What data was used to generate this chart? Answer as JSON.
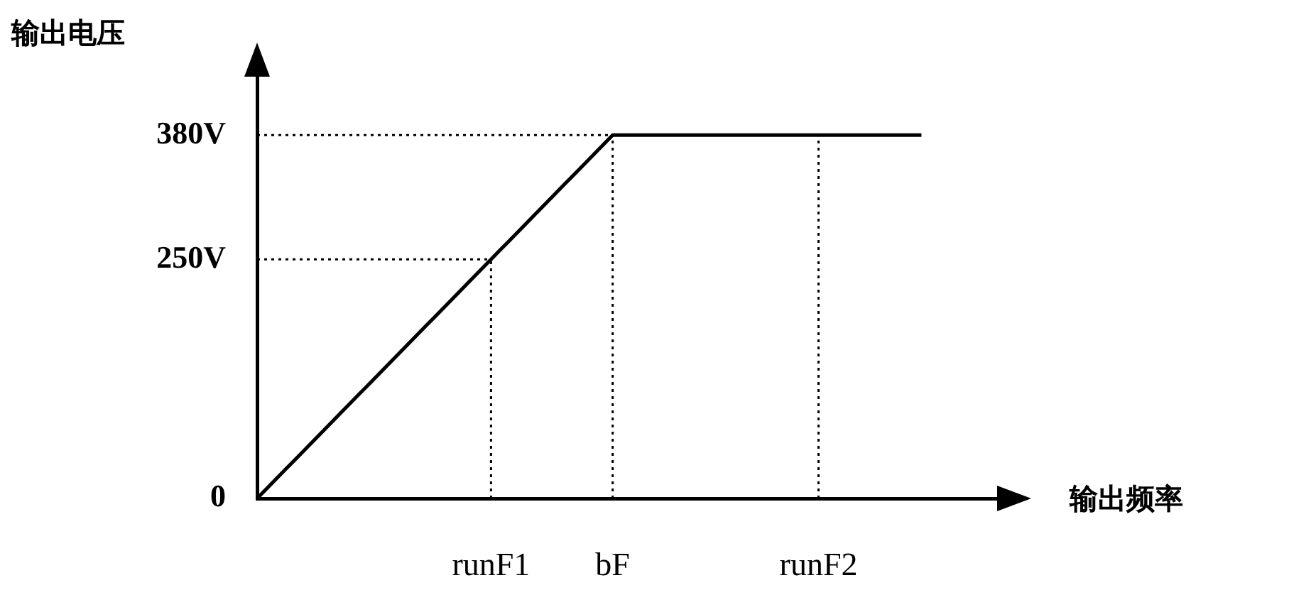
{
  "chart_data": {
    "type": "line",
    "xlabel": "输出频率",
    "ylabel": "输出电压",
    "categories": [
      null,
      null,
      null,
      null,
      null,
      null,
      null,
      null,
      null,
      null,
      null,
      null,
      null,
      null,
      null,
      null,
      null,
      null,
      null,
      null,
      null,
      null,
      null,
      null,
      null,
      "runF1",
      null,
      null,
      null,
      null,
      null,
      null,
      null,
      null,
      null,
      null,
      null,
      null,
      "bF",
      null,
      null,
      null,
      null,
      null,
      null,
      null,
      null,
      null,
      null,
      null,
      null,
      null,
      null,
      null,
      null,
      null,
      null,
      null,
      null,
      null,
      "runF2",
      null,
      null,
      null,
      null,
      null,
      null,
      null,
      null,
      null,
      null,
      null,
      null,
      null,
      null,
      null,
      null,
      null,
      null,
      null,
      null
    ],
    "series": [
      {
        "color": "#000000",
        "values": [
          0,
          10,
          20,
          30,
          40,
          50,
          60,
          70,
          80,
          90,
          100,
          110,
          120,
          130,
          140,
          150,
          160,
          170,
          180,
          190,
          200,
          210,
          220,
          230,
          240,
          250,
          260,
          270,
          280,
          290,
          300,
          310,
          320,
          330,
          340,
          350,
          360,
          370,
          380,
          380,
          380,
          380,
          380,
          380,
          380,
          380,
          380,
          380,
          380,
          380,
          380,
          380,
          380,
          380,
          380,
          380,
          380,
          380,
          380,
          380,
          380,
          380,
          380,
          380,
          380,
          380,
          380,
          380,
          380,
          380,
          380,
          380,
          null,
          null,
          null,
          null,
          null,
          null,
          null,
          null,
          null
        ]
      }
    ],
    "ylim": [
      0,
      450
    ],
    "yticks": [
      0,
      {
        "value": 250,
        "label": "250V"
      },
      {
        "value": 380,
        "label": "380V"
      }
    ],
    "ref_lines": [
      {
        "axis": "y",
        "value": 380,
        "line_style": "dotted"
      },
      {
        "axis": "y",
        "value": 250,
        "line_style": "dotted"
      },
      {
        "axis": "x",
        "value": "runF1",
        "line_style": "dotted"
      },
      {
        "axis": "x",
        "value": "bF",
        "line_style": "dotted"
      },
      {
        "axis": "x",
        "value": "runF2",
        "line_style": "dotted"
      }
    ],
    "grid": false,
    "legend": false,
    "marker": "none",
    "line_style": "solid"
  }
}
